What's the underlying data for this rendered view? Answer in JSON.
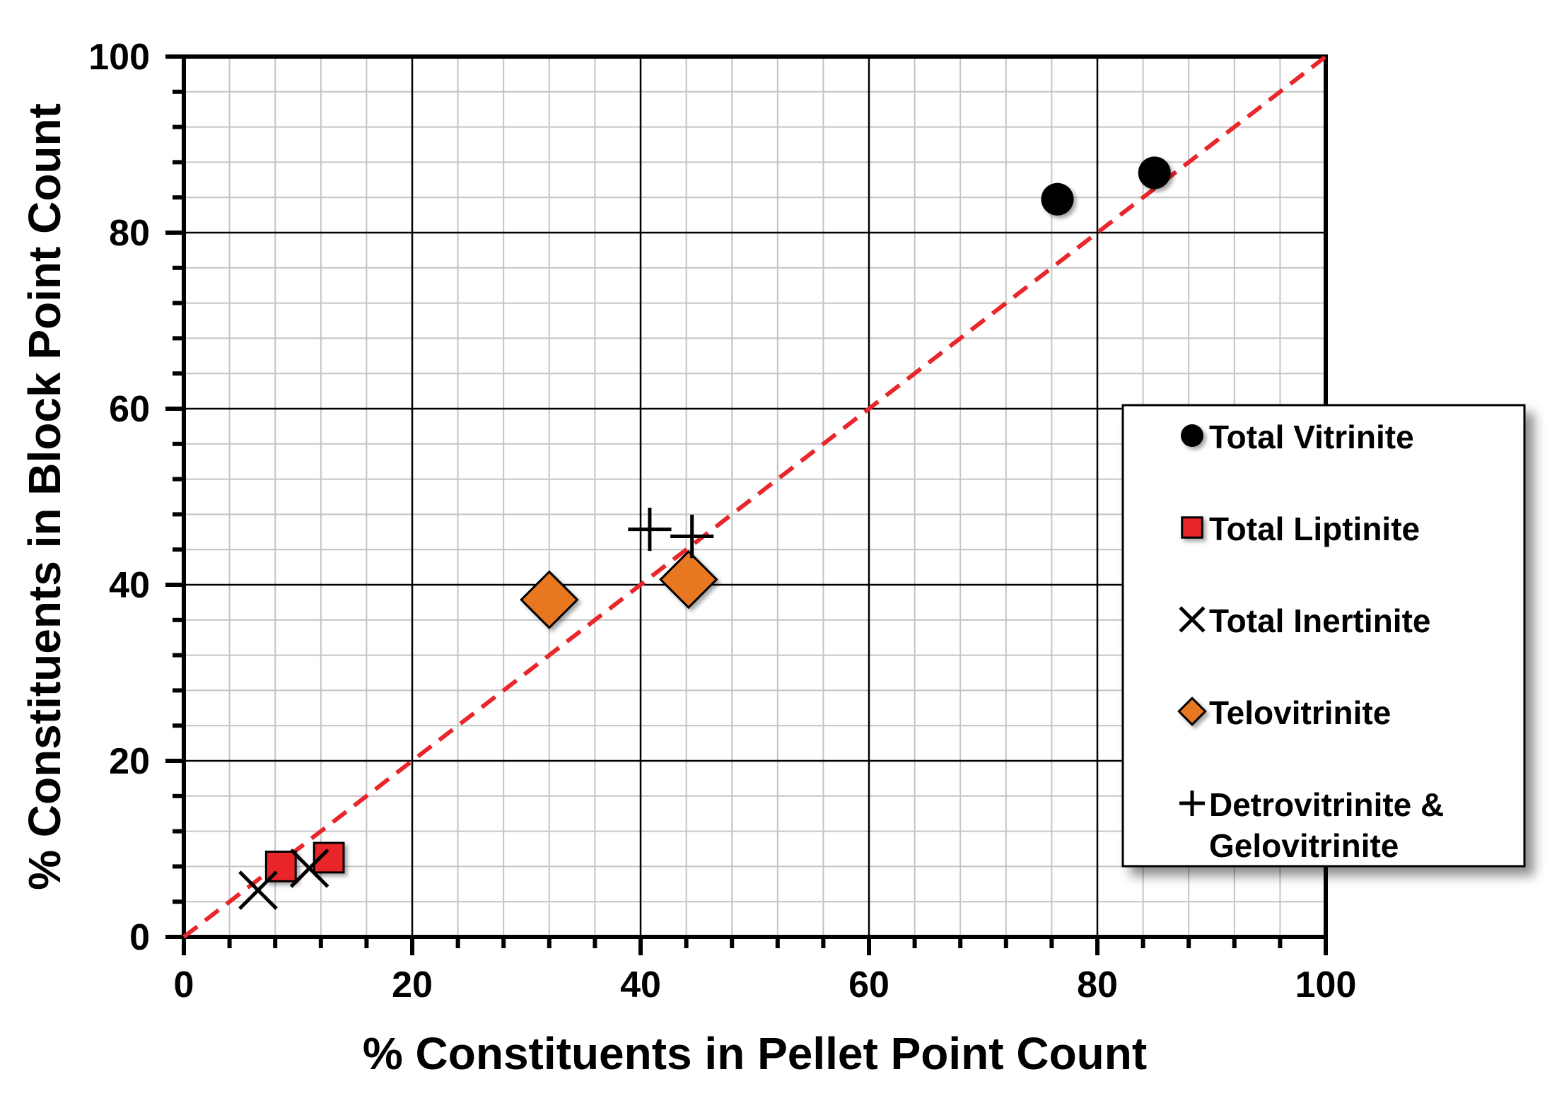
{
  "chart_data": {
    "type": "scatter",
    "title": "",
    "xlabel": "% Constituents in Pellet Point Count",
    "ylabel": "% Constituents in Block Point Count",
    "xlim": [
      0,
      100
    ],
    "ylim": [
      0,
      100
    ],
    "x_ticks": [
      "0",
      "20",
      "40",
      "60",
      "80",
      "100"
    ],
    "y_ticks": [
      "0",
      "20",
      "40",
      "60",
      "80",
      "100"
    ],
    "grid": true,
    "reference_line": {
      "type": "1:1 dashed",
      "color": "#e8262b",
      "from": [
        0,
        0
      ],
      "to": [
        100,
        100
      ]
    },
    "legend_position": "right",
    "series": [
      {
        "name": "Total Vitrinite",
        "marker": "circle",
        "color": "#000000",
        "points": [
          [
            76.5,
            83.8
          ],
          [
            85.0,
            86.8
          ]
        ]
      },
      {
        "name": "Total Liptinite",
        "marker": "square",
        "color": "#e8262b",
        "points": [
          [
            8.5,
            8.0
          ],
          [
            12.7,
            9.0
          ]
        ]
      },
      {
        "name": "Total Inertinite",
        "marker": "x",
        "color": "#000000",
        "points": [
          [
            6.5,
            5.3
          ],
          [
            11.0,
            7.8
          ]
        ]
      },
      {
        "name": "Telovitrinite",
        "marker": "diamond",
        "color": "#e87722",
        "points": [
          [
            32.0,
            38.3
          ],
          [
            44.2,
            40.6
          ]
        ]
      },
      {
        "name_lines": [
          "Detrovitrinite &",
          "Gelovitrinite"
        ],
        "marker": "plus",
        "color": "#000000",
        "points": [
          [
            40.8,
            46.3
          ],
          [
            44.5,
            45.5
          ]
        ]
      }
    ]
  }
}
